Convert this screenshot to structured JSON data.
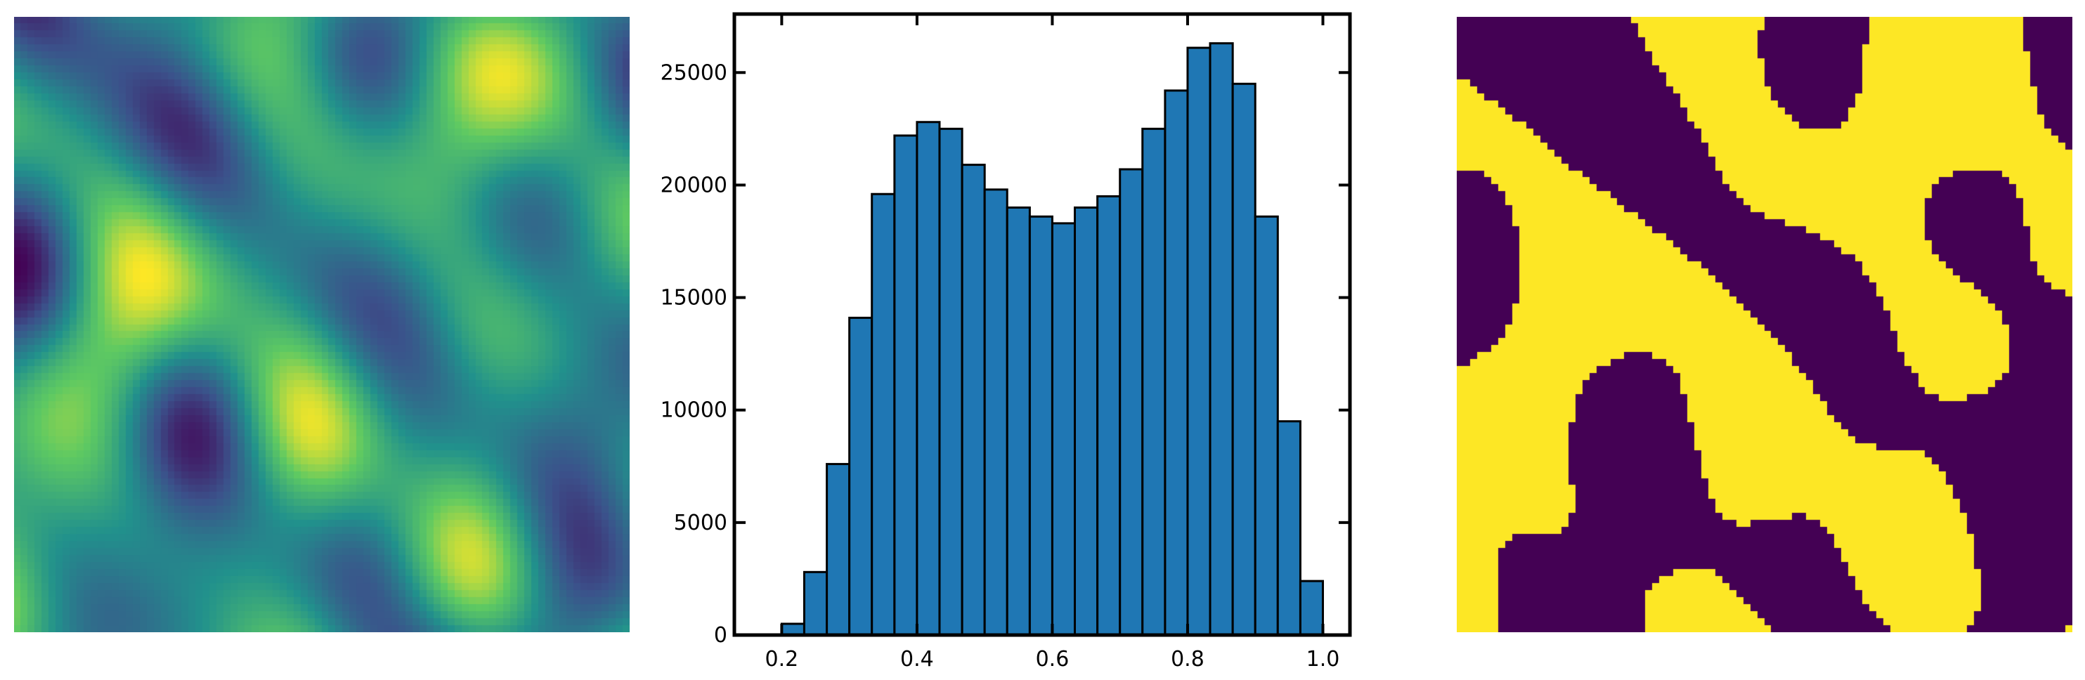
{
  "figure": {
    "panels": [
      "continuous-field-image",
      "histogram",
      "thresholded-binary-image"
    ],
    "colormap": [
      "#440154",
      "#3b528b",
      "#21918c",
      "#5ec962",
      "#fde725"
    ],
    "binary_colors": {
      "low": "#440154",
      "high": "#fde725"
    }
  },
  "chart_data": {
    "type": "bar",
    "bar_color": "#1f77b4",
    "edge_color": "#000000",
    "bin_edges": [
      0.2,
      0.2333,
      0.2667,
      0.3,
      0.3333,
      0.3667,
      0.4,
      0.4333,
      0.4667,
      0.5,
      0.5333,
      0.5667,
      0.6,
      0.6333,
      0.6667,
      0.7,
      0.7333,
      0.7667,
      0.8,
      0.8333,
      0.8667,
      0.9,
      0.9333,
      0.9667,
      1.0
    ],
    "values": [
      500,
      2800,
      7600,
      14100,
      19600,
      22200,
      22800,
      22500,
      20900,
      19800,
      19000,
      18600,
      18300,
      19000,
      19500,
      20700,
      22500,
      24200,
      26100,
      26300,
      24500,
      18600,
      9500,
      2400
    ],
    "xlim": [
      0.13,
      1.04
    ],
    "ylim": [
      0,
      27600
    ],
    "xticks": [
      "0.2",
      "0.4",
      "0.6",
      "0.8",
      "1.0"
    ],
    "xtick_values": [
      0.2,
      0.4,
      0.6,
      0.8,
      1.0
    ],
    "yticks": [
      "0",
      "5000",
      "10000",
      "15000",
      "20000",
      "25000"
    ],
    "ytick_values": [
      0,
      5000,
      10000,
      15000,
      20000,
      25000
    ],
    "title": "",
    "xlabel": "",
    "ylabel": "",
    "grid": false
  }
}
